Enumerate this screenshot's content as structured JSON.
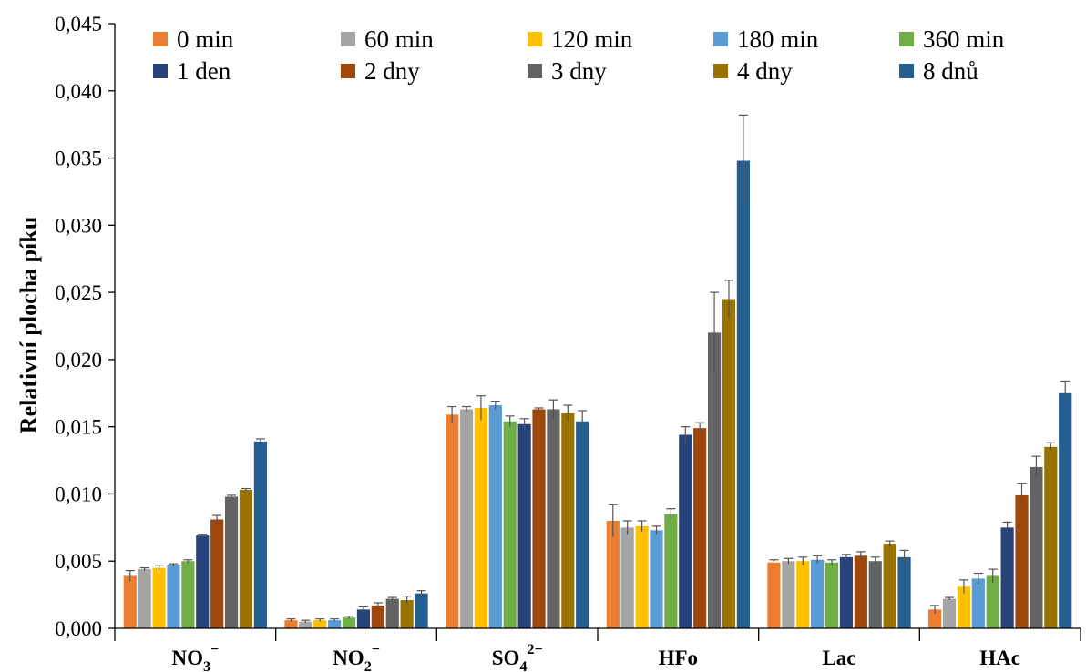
{
  "chart_data": {
    "type": "bar",
    "ylabel": "Relativní plocha píku",
    "ylim": [
      0,
      0.045
    ],
    "yticks": [
      0,
      0.005,
      0.01,
      0.015,
      0.02,
      0.025,
      0.03,
      0.035,
      0.04,
      0.045
    ],
    "ytick_labels": [
      "0,000",
      "0,005",
      "0,010",
      "0,015",
      "0,020",
      "0,025",
      "0,030",
      "0,035",
      "0,040",
      "0,045"
    ],
    "grid": false,
    "legend_position": "top",
    "categories": [
      {
        "base": "NO",
        "sub": "3",
        "sup": "−"
      },
      {
        "base": "NO",
        "sub": "2",
        "sup": "−"
      },
      {
        "base": "SO",
        "sub": "4",
        "sup": "2−"
      },
      {
        "base": "HFo",
        "sub": "",
        "sup": ""
      },
      {
        "base": "Lac",
        "sub": "",
        "sup": ""
      },
      {
        "base": "HAc",
        "sub": "",
        "sup": ""
      }
    ],
    "series": [
      {
        "name": "0 min",
        "color": "#ED7D31",
        "values": [
          0.0039,
          0.0006,
          0.0159,
          0.008,
          0.0049,
          0.0014
        ],
        "errors": [
          0.0004,
          0.0001,
          0.0006,
          0.0012,
          0.0002,
          0.0003
        ]
      },
      {
        "name": "60 min",
        "color": "#A5A5A5",
        "values": [
          0.0044,
          0.0005,
          0.0163,
          0.0075,
          0.005,
          0.0022
        ],
        "errors": [
          0.0001,
          0.0001,
          0.0002,
          0.0005,
          0.0002,
          0.0001
        ]
      },
      {
        "name": "120 min",
        "color": "#FFC000",
        "values": [
          0.0045,
          0.0006,
          0.0164,
          0.0076,
          0.005,
          0.0031
        ],
        "errors": [
          0.0002,
          0.0001,
          0.0009,
          0.0004,
          0.0003,
          0.0005
        ]
      },
      {
        "name": "180 min",
        "color": "#5B9BD5",
        "values": [
          0.0047,
          0.0006,
          0.0166,
          0.0073,
          0.0051,
          0.0037
        ],
        "errors": [
          0.0001,
          0.0001,
          0.0003,
          0.0003,
          0.0003,
          0.0004
        ]
      },
      {
        "name": "360 min",
        "color": "#70AD47",
        "values": [
          0.005,
          0.0008,
          0.0154,
          0.0085,
          0.0049,
          0.0039
        ],
        "errors": [
          0.0001,
          0.0001,
          0.0004,
          0.0004,
          0.0002,
          0.0005
        ]
      },
      {
        "name": "1 den",
        "color": "#264478",
        "values": [
          0.0069,
          0.0014,
          0.0152,
          0.0144,
          0.0053,
          0.0075
        ],
        "errors": [
          0.0001,
          0.0002,
          0.0004,
          0.0006,
          0.0002,
          0.0004
        ]
      },
      {
        "name": "2 dny",
        "color": "#9E480E",
        "values": [
          0.0081,
          0.0017,
          0.0163,
          0.0149,
          0.0054,
          0.0099
        ],
        "errors": [
          0.0003,
          0.0002,
          0.0001,
          0.0004,
          0.0003,
          0.0009
        ]
      },
      {
        "name": "3 dny",
        "color": "#636363",
        "values": [
          0.0098,
          0.0022,
          0.0163,
          0.022,
          0.005,
          0.012
        ],
        "errors": [
          0.0001,
          0.0001,
          0.0007,
          0.003,
          0.0003,
          0.0008
        ]
      },
      {
        "name": "4 dny",
        "color": "#997300",
        "values": [
          0.0103,
          0.0021,
          0.016,
          0.0245,
          0.0063,
          0.0135
        ],
        "errors": [
          0.0001,
          0.0003,
          0.0006,
          0.0014,
          0.0002,
          0.0003
        ]
      },
      {
        "name": "8 dnů",
        "color": "#255E91",
        "values": [
          0.0139,
          0.0026,
          0.0154,
          0.0348,
          0.0053,
          0.0175
        ],
        "errors": [
          0.0002,
          0.0002,
          0.0008,
          0.0034,
          0.0005,
          0.0009
        ]
      }
    ]
  }
}
